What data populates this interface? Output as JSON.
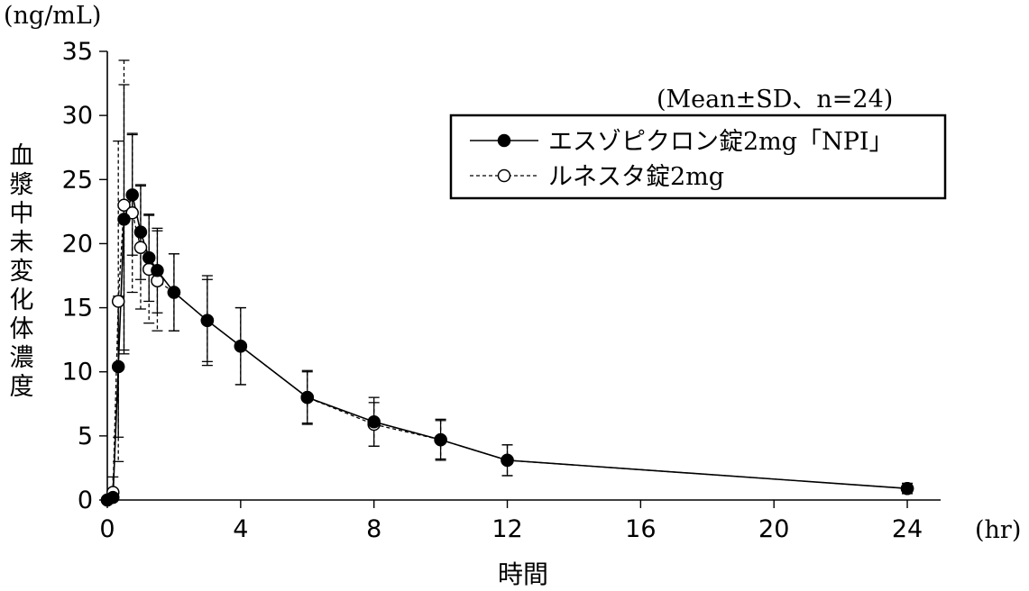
{
  "chart_data": {
    "type": "line",
    "y_unit": "(ng/mL)",
    "x_unit": "(hr)",
    "xlabel": "時間",
    "ylabel": "血漿中未変化体濃度",
    "annotation": "(Mean±SD、n=24)",
    "xlim": [
      0,
      25
    ],
    "ylim": [
      0,
      35
    ],
    "x_ticks": [
      0,
      4,
      8,
      12,
      16,
      20,
      24
    ],
    "y_ticks": [
      0,
      5,
      10,
      15,
      20,
      25,
      30,
      35
    ],
    "legend_position": "top-right",
    "series": [
      {
        "name": "エスゾピクロン錠2mg「NPI」",
        "marker": "filled-circle",
        "line": "solid",
        "x": [
          0,
          0.17,
          0.33,
          0.5,
          0.75,
          1,
          1.25,
          1.5,
          2,
          3,
          4,
          6,
          8,
          10,
          12,
          24
        ],
        "y": [
          0,
          0.2,
          10.4,
          21.9,
          23.8,
          20.9,
          18.9,
          17.9,
          16.2,
          14.0,
          12.0,
          8.0,
          6.1,
          4.7,
          3.1,
          0.9
        ],
        "sd": [
          0,
          0.4,
          5.5,
          10.5,
          4.7,
          3.7,
          3.4,
          3.3,
          3.0,
          3.5,
          3.0,
          2.1,
          1.9,
          1.6,
          1.2,
          0.4
        ]
      },
      {
        "name": "ルネスタ錠2mg",
        "marker": "open-circle",
        "line": "dashed",
        "x": [
          0,
          0.17,
          0.33,
          0.5,
          0.75,
          1,
          1.25,
          1.5,
          2,
          3,
          4,
          6,
          8,
          10,
          12,
          24
        ],
        "y": [
          0,
          0.6,
          15.5,
          23.0,
          22.4,
          19.7,
          18.0,
          17.1,
          16.2,
          14.0,
          12.0,
          8.0,
          5.9,
          4.7,
          3.1,
          0.9
        ],
        "sd": [
          0,
          1.2,
          12.5,
          11.3,
          6.2,
          4.8,
          4.2,
          3.9,
          3.0,
          3.2,
          3.0,
          2.0,
          1.7,
          1.5,
          1.2,
          0.4
        ]
      }
    ]
  }
}
